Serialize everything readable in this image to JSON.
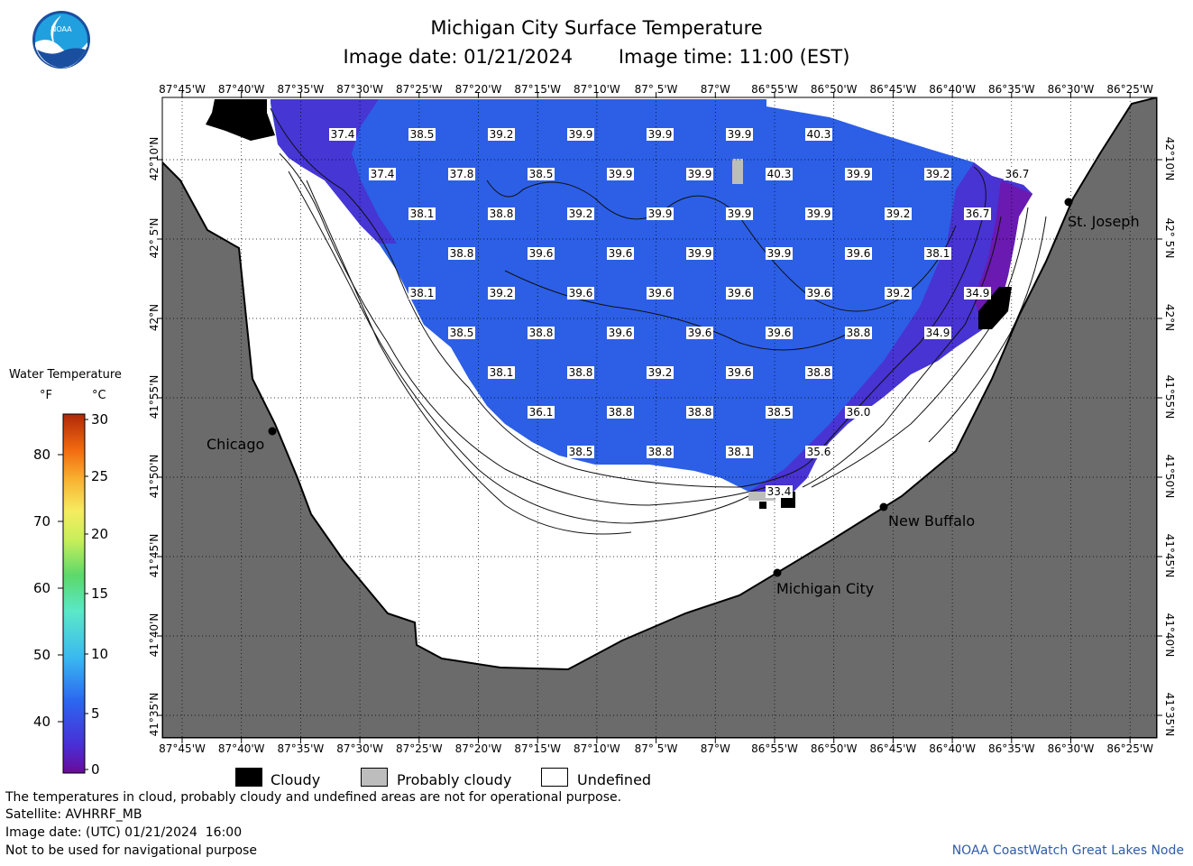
{
  "title": "Michigan City Surface Temperature",
  "image_date": "Image date: 01/21/2024",
  "image_time": "Image time: 11:00 (EST)",
  "logo_text": "NOAA",
  "lon_labels": [
    "87°45'W",
    "87°40'W",
    "87°35'W",
    "87°30'W",
    "87°25'W",
    "87°20'W",
    "87°15'W",
    "87°10'W",
    "87° 5'W",
    "87°W",
    "86°55'W",
    "86°50'W",
    "86°45'W",
    "86°40'W",
    "86°35'W",
    "86°30'W",
    "86°25'W"
  ],
  "lat_labels": [
    "42°10'N",
    "42° 5'N",
    "42°N",
    "41°55'N",
    "41°50'N",
    "41°45'N",
    "41°40'N",
    "41°35'N"
  ],
  "cities": [
    {
      "name": "Chicago"
    },
    {
      "name": "St. Joseph"
    },
    {
      "name": "New Buffalo"
    },
    {
      "name": "Michigan City"
    }
  ],
  "legend": {
    "title": "Water Temperature",
    "unit_f": "°F",
    "unit_c": "°C",
    "f_ticks": [
      "80",
      "70",
      "60",
      "50",
      "40"
    ],
    "c_ticks": [
      "30",
      "25",
      "20",
      "15",
      "10",
      "5",
      "0"
    ]
  },
  "key": {
    "cloudy": "Cloudy",
    "probably_cloudy": "Probably cloudy",
    "undefined": "Undefined"
  },
  "footer": {
    "note": "The temperatures in cloud, probably cloudy and undefined areas are not for operational purpose.",
    "satellite": "Satellite: AVHRRF_MB",
    "utc_date": "Image date: (UTC) 01/21/2024  16:00",
    "nav": "Not to be used for navigational purpose",
    "credit": "NOAA CoastWatch Great Lakes Node"
  },
  "colors": {
    "land": "#6b6b6b",
    "water_main": "#2c5fe6",
    "water_cold": "#4b2fd0",
    "water_coldest": "#6a1ab0",
    "cloudy": "#000000",
    "probably_cloudy": "#bdbdbd",
    "undefined": "#ffffff",
    "credit": "#2f5ca8"
  },
  "temperatures": [
    {
      "row": 0,
      "values": [
        "37.4",
        "38.5",
        "39.2",
        "39.9",
        "39.9",
        "39.9",
        "40.3"
      ]
    },
    {
      "row": 1,
      "values": [
        "37.4",
        "37.8",
        "38.5",
        "39.9",
        "39.9",
        "40.3",
        "39.9",
        "39.2",
        "36.7"
      ]
    },
    {
      "row": 2,
      "values": [
        "38.1",
        "38.8",
        "39.2",
        "39.9",
        "39.9",
        "39.9",
        "39.2",
        "36.7"
      ]
    },
    {
      "row": 3,
      "values": [
        "38.8",
        "39.6",
        "39.6",
        "39.9",
        "39.9",
        "39.6",
        "38.1"
      ]
    },
    {
      "row": 4,
      "values": [
        "38.1",
        "39.2",
        "39.6",
        "39.6",
        "39.6",
        "39.6",
        "39.2",
        "34.9"
      ]
    },
    {
      "row": 5,
      "values": [
        "38.5",
        "38.8",
        "39.6",
        "39.6",
        "39.6",
        "38.8",
        "34.9"
      ]
    },
    {
      "row": 6,
      "values": [
        "38.1",
        "38.8",
        "39.2",
        "39.6",
        "38.8"
      ]
    },
    {
      "row": 7,
      "values": [
        "36.1",
        "38.8",
        "38.8",
        "38.5",
        "36.0"
      ]
    },
    {
      "row": 8,
      "values": [
        "38.5",
        "38.8",
        "38.1",
        "35.6"
      ]
    },
    {
      "row": 9,
      "values": [
        "33.4"
      ]
    }
  ]
}
